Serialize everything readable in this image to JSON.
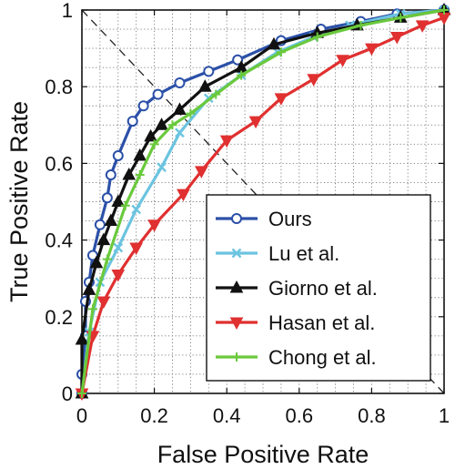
{
  "chart_data": {
    "type": "line",
    "xlabel": "False Positive Rate",
    "ylabel": "True Positive Rate",
    "xlim": [
      0,
      1
    ],
    "ylim": [
      0,
      1
    ],
    "grid": true,
    "grid_style": "dotted",
    "x_ticks": [
      "0",
      "0.2",
      "0.4",
      "0.6",
      "0.8",
      "1"
    ],
    "y_ticks": [
      "0",
      "0.2",
      "0.4",
      "0.6",
      "0.8",
      "1"
    ],
    "reference_line": {
      "from": [
        0,
        1
      ],
      "to": [
        1,
        0
      ],
      "style": "dashed",
      "color": "#222222"
    },
    "legend": {
      "position": "bottom-right"
    },
    "series": [
      {
        "name": "Ours",
        "color": "#2b50a8",
        "marker": "circle",
        "points": [
          [
            0,
            0
          ],
          [
            0,
            0.05
          ],
          [
            0.01,
            0.15
          ],
          [
            0.01,
            0.24
          ],
          [
            0.02,
            0.29
          ],
          [
            0.03,
            0.36
          ],
          [
            0.05,
            0.44
          ],
          [
            0.07,
            0.51
          ],
          [
            0.08,
            0.57
          ],
          [
            0.1,
            0.62
          ],
          [
            0.14,
            0.71
          ],
          [
            0.17,
            0.75
          ],
          [
            0.21,
            0.78
          ],
          [
            0.27,
            0.81
          ],
          [
            0.35,
            0.84
          ],
          [
            0.43,
            0.87
          ],
          [
            0.55,
            0.92
          ],
          [
            0.66,
            0.95
          ],
          [
            0.77,
            0.97
          ],
          [
            0.87,
            0.99
          ],
          [
            1,
            1
          ]
        ]
      },
      {
        "name": "Lu et al.",
        "color": "#6cc4e0",
        "marker": "x",
        "points": [
          [
            0,
            0
          ],
          [
            0.02,
            0.16
          ],
          [
            0.05,
            0.29
          ],
          [
            0.1,
            0.38
          ],
          [
            0.15,
            0.48
          ],
          [
            0.22,
            0.59
          ],
          [
            0.27,
            0.68
          ],
          [
            0.35,
            0.77
          ],
          [
            0.44,
            0.83
          ],
          [
            0.54,
            0.89
          ],
          [
            0.64,
            0.93
          ],
          [
            0.74,
            0.96
          ],
          [
            0.88,
            0.99
          ],
          [
            1,
            1
          ]
        ]
      },
      {
        "name": "Giorno et al.",
        "color": "#111111",
        "marker": "triangle-up",
        "points": [
          [
            0,
            0
          ],
          [
            0,
            0.14
          ],
          [
            0.02,
            0.27
          ],
          [
            0.04,
            0.34
          ],
          [
            0.06,
            0.4
          ],
          [
            0.08,
            0.45
          ],
          [
            0.1,
            0.5
          ],
          [
            0.13,
            0.57
          ],
          [
            0.16,
            0.62
          ],
          [
            0.19,
            0.67
          ],
          [
            0.22,
            0.7
          ],
          [
            0.27,
            0.74
          ],
          [
            0.34,
            0.8
          ],
          [
            0.44,
            0.85
          ],
          [
            0.53,
            0.91
          ],
          [
            0.65,
            0.94
          ],
          [
            0.76,
            0.96
          ],
          [
            0.88,
            0.98
          ],
          [
            1,
            1
          ]
        ]
      },
      {
        "name": "Hasan et al.",
        "color": "#e03030",
        "marker": "triangle-down",
        "points": [
          [
            0,
            0
          ],
          [
            0.03,
            0.15
          ],
          [
            0.06,
            0.24
          ],
          [
            0.1,
            0.31
          ],
          [
            0.15,
            0.38
          ],
          [
            0.2,
            0.44
          ],
          [
            0.28,
            0.52
          ],
          [
            0.33,
            0.58
          ],
          [
            0.4,
            0.66
          ],
          [
            0.48,
            0.71
          ],
          [
            0.55,
            0.77
          ],
          [
            0.64,
            0.82
          ],
          [
            0.72,
            0.87
          ],
          [
            0.8,
            0.9
          ],
          [
            0.87,
            0.93
          ],
          [
            0.94,
            0.96
          ],
          [
            1,
            0.98
          ]
        ]
      },
      {
        "name": "Chong et al.",
        "color": "#6ac93c",
        "marker": "plus",
        "points": [
          [
            0,
            0
          ],
          [
            0.03,
            0.22
          ],
          [
            0.07,
            0.35
          ],
          [
            0.12,
            0.49
          ],
          [
            0.16,
            0.57
          ],
          [
            0.2,
            0.65
          ],
          [
            0.25,
            0.7
          ],
          [
            0.3,
            0.73
          ],
          [
            0.37,
            0.78
          ],
          [
            0.44,
            0.83
          ],
          [
            0.55,
            0.89
          ],
          [
            0.65,
            0.93
          ],
          [
            0.77,
            0.96
          ],
          [
            0.88,
            0.98
          ],
          [
            1,
            1
          ]
        ]
      }
    ]
  }
}
